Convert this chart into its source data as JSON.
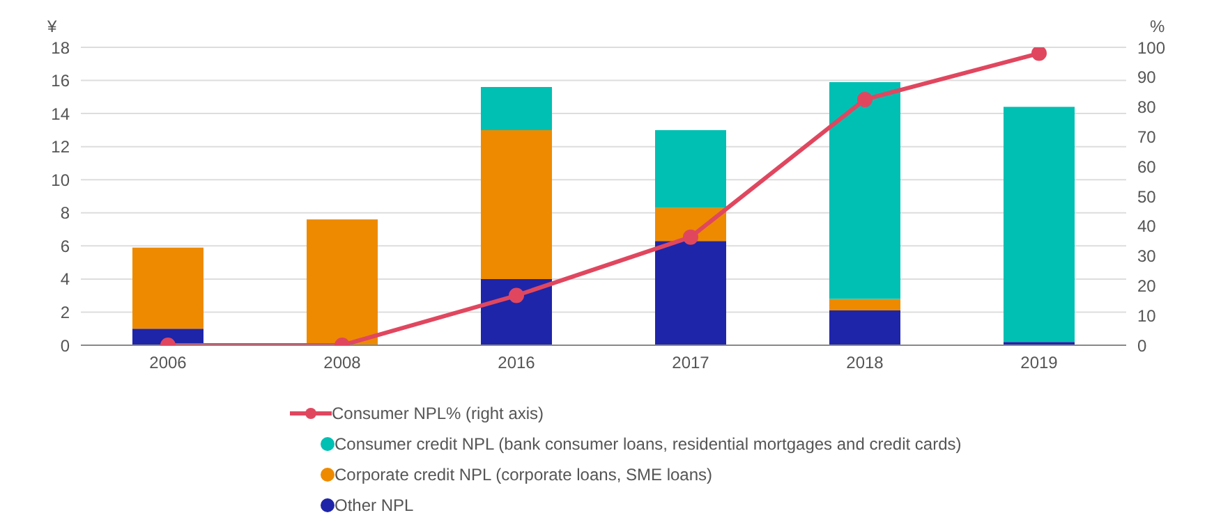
{
  "chart_data": {
    "type": "bar",
    "stacked": true,
    "ylabel": "¥",
    "y2label": "%",
    "categories": [
      "2006",
      "2008",
      "2016",
      "2017",
      "2018",
      "2019"
    ],
    "series": [
      {
        "name": "Other NPL",
        "color": "#1f25a8",
        "values": [
          1.0,
          0,
          4.0,
          6.3,
          2.1,
          0.2
        ]
      },
      {
        "name": "Corporate credit NPL (corporate loans, SME loans)",
        "color": "#ee8a00",
        "values": [
          4.9,
          7.6,
          9.0,
          2.0,
          0.7,
          0
        ]
      },
      {
        "name": "Consumer credit NPL (bank consumer loans, residential mortgages and credit cards)",
        "color": "#00bfb3",
        "values": [
          0,
          0,
          2.6,
          4.7,
          13.1,
          14.2
        ]
      },
      {
        "name": "Consumer NPL% (right axis)",
        "type": "line",
        "axis": "y2",
        "color": "#e0475f",
        "values": [
          0,
          0,
          16.7,
          36.3,
          82.5,
          98
        ]
      }
    ],
    "ylim": [
      0,
      18
    ],
    "yticks": [
      0,
      2,
      4,
      6,
      8,
      10,
      12,
      14,
      16,
      18
    ],
    "y2lim": [
      0,
      100
    ],
    "y2ticks": [
      0,
      10,
      20,
      30,
      40,
      50,
      60,
      70,
      80,
      90,
      100
    ],
    "grid": "y",
    "legend": "bottom",
    "marker": "circle"
  }
}
